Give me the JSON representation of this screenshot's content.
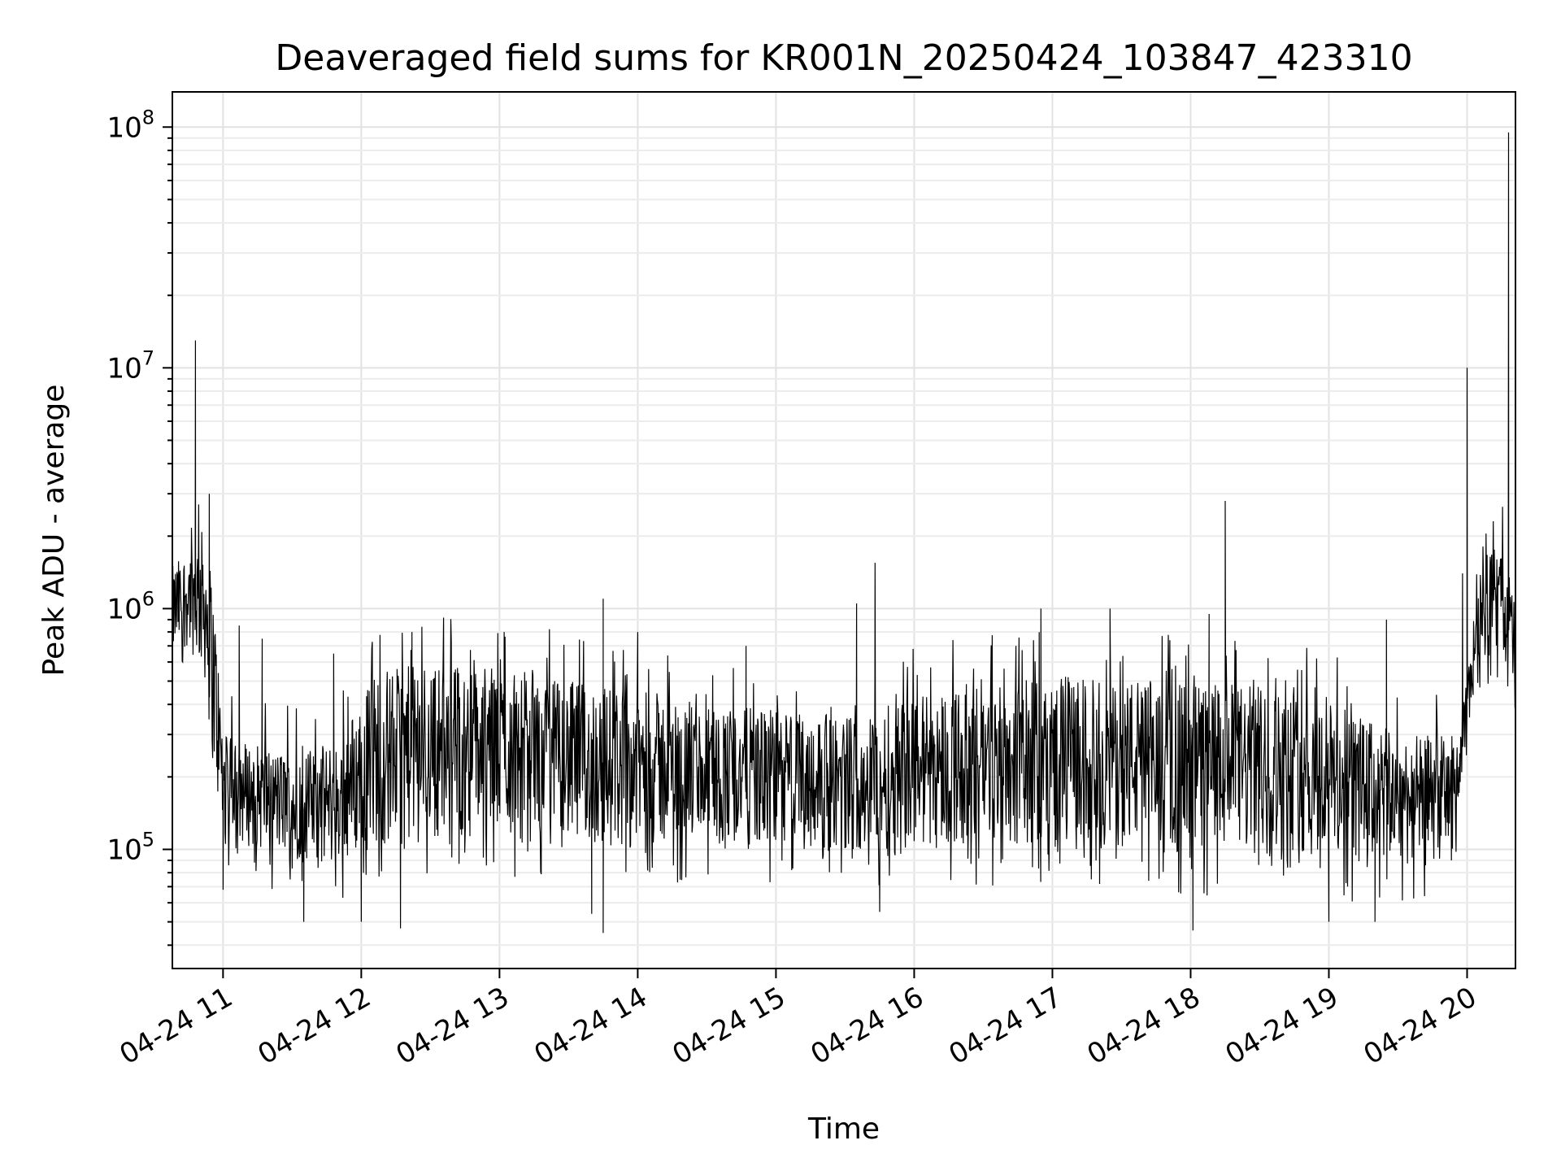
{
  "chart_data": {
    "type": "line",
    "title": "Deaveraged field sums for KR001N_20250424_103847_423310",
    "xlabel": "Time",
    "ylabel": "Peak ADU - average",
    "yscale": "log",
    "ylim": [
      32000,
      140000000
    ],
    "xlim": [
      "04-24 10:38",
      "04-24 20:21"
    ],
    "grid": true,
    "x_ticks": [
      "04-24 11",
      "04-24 12",
      "04-24 13",
      "04-24 14",
      "04-24 15",
      "04-24 16",
      "04-24 17",
      "04-24 18",
      "04-24 19",
      "04-24 20"
    ],
    "y_ticks": [
      {
        "base": "10",
        "exp": "5"
      },
      {
        "base": "10",
        "exp": "7"
      },
      {
        "base": "10",
        "exp": "6"
      },
      {
        "base": "10",
        "exp": "8"
      }
    ],
    "series": [
      {
        "color": "#000000",
        "envelope": [
          {
            "t": "10:38",
            "low": 600000,
            "high": 1500000
          },
          {
            "t": "10:45",
            "low": 700000,
            "high": 1800000
          },
          {
            "t": "10:52",
            "low": 500000,
            "high": 2200000
          },
          {
            "t": "10:56",
            "low": 200000,
            "high": 1200000
          },
          {
            "t": "11:00",
            "low": 110000,
            "high": 300000
          },
          {
            "t": "11:30",
            "low": 90000,
            "high": 250000
          },
          {
            "t": "11:50",
            "low": 85000,
            "high": 280000
          },
          {
            "t": "12:05",
            "low": 100000,
            "high": 550000
          },
          {
            "t": "12:30",
            "low": 110000,
            "high": 600000
          },
          {
            "t": "13:00",
            "low": 110000,
            "high": 580000
          },
          {
            "t": "13:30",
            "low": 100000,
            "high": 500000
          },
          {
            "t": "14:00",
            "low": 100000,
            "high": 470000
          },
          {
            "t": "14:30",
            "low": 100000,
            "high": 400000
          },
          {
            "t": "15:00",
            "low": 100000,
            "high": 380000
          },
          {
            "t": "15:30",
            "low": 100000,
            "high": 360000
          },
          {
            "t": "15:45",
            "low": 90000,
            "high": 380000
          },
          {
            "t": "16:00",
            "low": 100000,
            "high": 450000
          },
          {
            "t": "16:30",
            "low": 100000,
            "high": 500000
          },
          {
            "t": "17:00",
            "low": 100000,
            "high": 520000
          },
          {
            "t": "17:30",
            "low": 100000,
            "high": 520000
          },
          {
            "t": "18:00",
            "low": 90000,
            "high": 500000
          },
          {
            "t": "18:30",
            "low": 90000,
            "high": 480000
          },
          {
            "t": "19:00",
            "low": 85000,
            "high": 420000
          },
          {
            "t": "19:30",
            "low": 85000,
            "high": 300000
          },
          {
            "t": "19:55",
            "low": 90000,
            "high": 300000
          },
          {
            "t": "20:00",
            "low": 250000,
            "high": 500000
          },
          {
            "t": "20:05",
            "low": 600000,
            "high": 1800000
          },
          {
            "t": "20:15",
            "low": 600000,
            "high": 1800000
          },
          {
            "t": "20:21",
            "low": 300000,
            "high": 1200000
          }
        ],
        "spikes": [
          {
            "t": "10:48",
            "value": 13000000
          },
          {
            "t": "10:54",
            "value": 3000000
          },
          {
            "t": "11:07",
            "value": 850000
          },
          {
            "t": "11:17",
            "value": 750000
          },
          {
            "t": "11:48",
            "value": 650000
          },
          {
            "t": "12:22",
            "value": 800000
          },
          {
            "t": "13:02",
            "value": 800000
          },
          {
            "t": "13:45",
            "value": 1100000
          },
          {
            "t": "14:00",
            "value": 800000
          },
          {
            "t": "14:47",
            "value": 700000
          },
          {
            "t": "15:35",
            "value": 1050000
          },
          {
            "t": "15:43",
            "value": 1550000
          },
          {
            "t": "16:55",
            "value": 1000000
          },
          {
            "t": "17:25",
            "value": 1000000
          },
          {
            "t": "18:15",
            "value": 2800000
          },
          {
            "t": "18:08",
            "value": 950000
          },
          {
            "t": "19:25",
            "value": 900000
          },
          {
            "t": "19:58",
            "value": 1400000
          },
          {
            "t": "20:00",
            "value": 10000000
          },
          {
            "t": "20:18",
            "value": 95000000
          }
        ],
        "dips": [
          {
            "t": "11:00",
            "value": 68000
          },
          {
            "t": "11:35",
            "value": 50000
          },
          {
            "t": "12:00",
            "value": 50000
          },
          {
            "t": "12:17",
            "value": 47000
          },
          {
            "t": "13:45",
            "value": 45000
          },
          {
            "t": "13:40",
            "value": 54000
          },
          {
            "t": "15:45",
            "value": 55000
          },
          {
            "t": "18:01",
            "value": 46000
          },
          {
            "t": "19:00",
            "value": 50000
          },
          {
            "t": "19:20",
            "value": 50000
          }
        ]
      }
    ]
  }
}
